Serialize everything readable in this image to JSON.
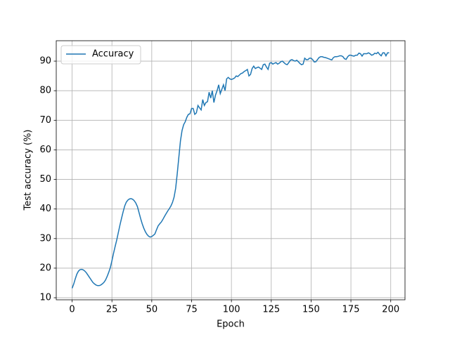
{
  "chart_data": {
    "type": "line",
    "xlabel": "Epoch",
    "ylabel": "Test accuracy (%)",
    "x": [
      0,
      1,
      2,
      3,
      4,
      5,
      6,
      7,
      8,
      9,
      10,
      11,
      12,
      13,
      14,
      15,
      16,
      17,
      18,
      19,
      20,
      21,
      22,
      23,
      24,
      25,
      26,
      27,
      28,
      29,
      30,
      31,
      32,
      33,
      34,
      35,
      36,
      37,
      38,
      39,
      40,
      41,
      42,
      43,
      44,
      45,
      46,
      47,
      48,
      49,
      50,
      51,
      52,
      53,
      54,
      55,
      56,
      57,
      58,
      59,
      60,
      61,
      62,
      63,
      64,
      65,
      66,
      67,
      68,
      69,
      70,
      71,
      72,
      73,
      74,
      75,
      76,
      77,
      78,
      79,
      80,
      81,
      82,
      83,
      84,
      85,
      86,
      87,
      88,
      89,
      90,
      91,
      92,
      93,
      94,
      95,
      96,
      97,
      98,
      99,
      100,
      101,
      102,
      103,
      104,
      105,
      106,
      107,
      108,
      109,
      110,
      111,
      112,
      113,
      114,
      115,
      116,
      117,
      118,
      119,
      120,
      121,
      122,
      123,
      124,
      125,
      126,
      127,
      128,
      129,
      130,
      131,
      132,
      133,
      134,
      135,
      136,
      137,
      138,
      139,
      140,
      141,
      142,
      143,
      144,
      145,
      146,
      147,
      148,
      149,
      150,
      151,
      152,
      153,
      154,
      155,
      156,
      157,
      158,
      159,
      160,
      161,
      162,
      163,
      164,
      165,
      166,
      167,
      168,
      169,
      170,
      171,
      172,
      173,
      174,
      175,
      176,
      177,
      178,
      179,
      180,
      181,
      182,
      183,
      184,
      185,
      186,
      187,
      188,
      189,
      190,
      191,
      192,
      193,
      194,
      195,
      196,
      197,
      198,
      199
    ],
    "series": [
      {
        "name": "Accuracy",
        "color": "#1f77b4",
        "values": [
          13.2,
          14.6,
          16.4,
          18,
          19,
          19.5,
          19.6,
          19.4,
          19,
          18.4,
          17.6,
          16.8,
          16,
          15.2,
          14.7,
          14.3,
          14.1,
          14.1,
          14.3,
          14.7,
          15.2,
          16,
          17.2,
          18.6,
          20.2,
          22.5,
          25,
          27.3,
          29.5,
          32,
          34.5,
          36.8,
          39,
          41,
          42.3,
          43,
          43.4,
          43.5,
          43.3,
          42.8,
          42,
          40.8,
          38.8,
          36.8,
          35,
          33.5,
          32.3,
          31.4,
          30.8,
          30.5,
          30.7,
          31.1,
          31.6,
          33,
          34.3,
          35,
          35.6,
          36.5,
          37.5,
          38.4,
          39.3,
          40.1,
          41,
          42.2,
          44,
          47,
          52,
          57.5,
          63,
          66.5,
          68.5,
          69.5,
          71,
          72,
          72.2,
          74,
          74,
          72,
          72.5,
          75,
          74.2,
          73.5,
          77,
          75,
          76,
          76.3,
          79.5,
          77.5,
          80,
          76,
          78.5,
          80,
          82,
          79,
          80.5,
          82,
          80,
          84,
          84.5,
          84,
          83.8,
          84,
          84.3,
          85,
          84.8,
          85.3,
          85.8,
          86,
          86.5,
          86.8,
          87.2,
          85,
          85.5,
          87.5,
          88.3,
          87.5,
          87.8,
          88,
          87.6,
          87.2,
          88.8,
          89,
          88,
          87.2,
          89.3,
          89.5,
          89,
          89.3,
          89.5,
          89,
          89.3,
          89.8,
          90,
          89.5,
          89,
          88.8,
          89.5,
          90.3,
          90.5,
          90.2,
          90,
          90.3,
          89.8,
          89.2,
          88.8,
          89,
          91,
          90.5,
          90.5,
          91,
          91,
          90.5,
          89.7,
          89.8,
          90.5,
          91.2,
          91.5,
          91.5,
          91.3,
          91.2,
          91,
          90.8,
          90.6,
          90.4,
          91.2,
          91.5,
          91.5,
          91.6,
          91.8,
          91.8,
          91.5,
          90.8,
          90.6,
          91.5,
          92,
          92,
          91.8,
          91.7,
          92,
          92,
          92.7,
          92.5,
          91.7,
          92.5,
          92.5,
          92.5,
          92.8,
          92.5,
          92,
          92.2,
          92.7,
          92.5,
          93,
          92.3,
          91.8,
          92.8,
          92.8,
          91.8,
          92.8,
          92.8
        ]
      }
    ],
    "xlim": [
      -9.95,
      208.95
    ],
    "xticks": [
      0,
      25,
      50,
      75,
      100,
      125,
      150,
      175,
      200
    ],
    "ylim": [
      9.3,
      96.9
    ],
    "yticks": [
      10,
      20,
      30,
      40,
      50,
      60,
      70,
      80,
      90
    ],
    "grid": true,
    "legend": "upper-left"
  }
}
